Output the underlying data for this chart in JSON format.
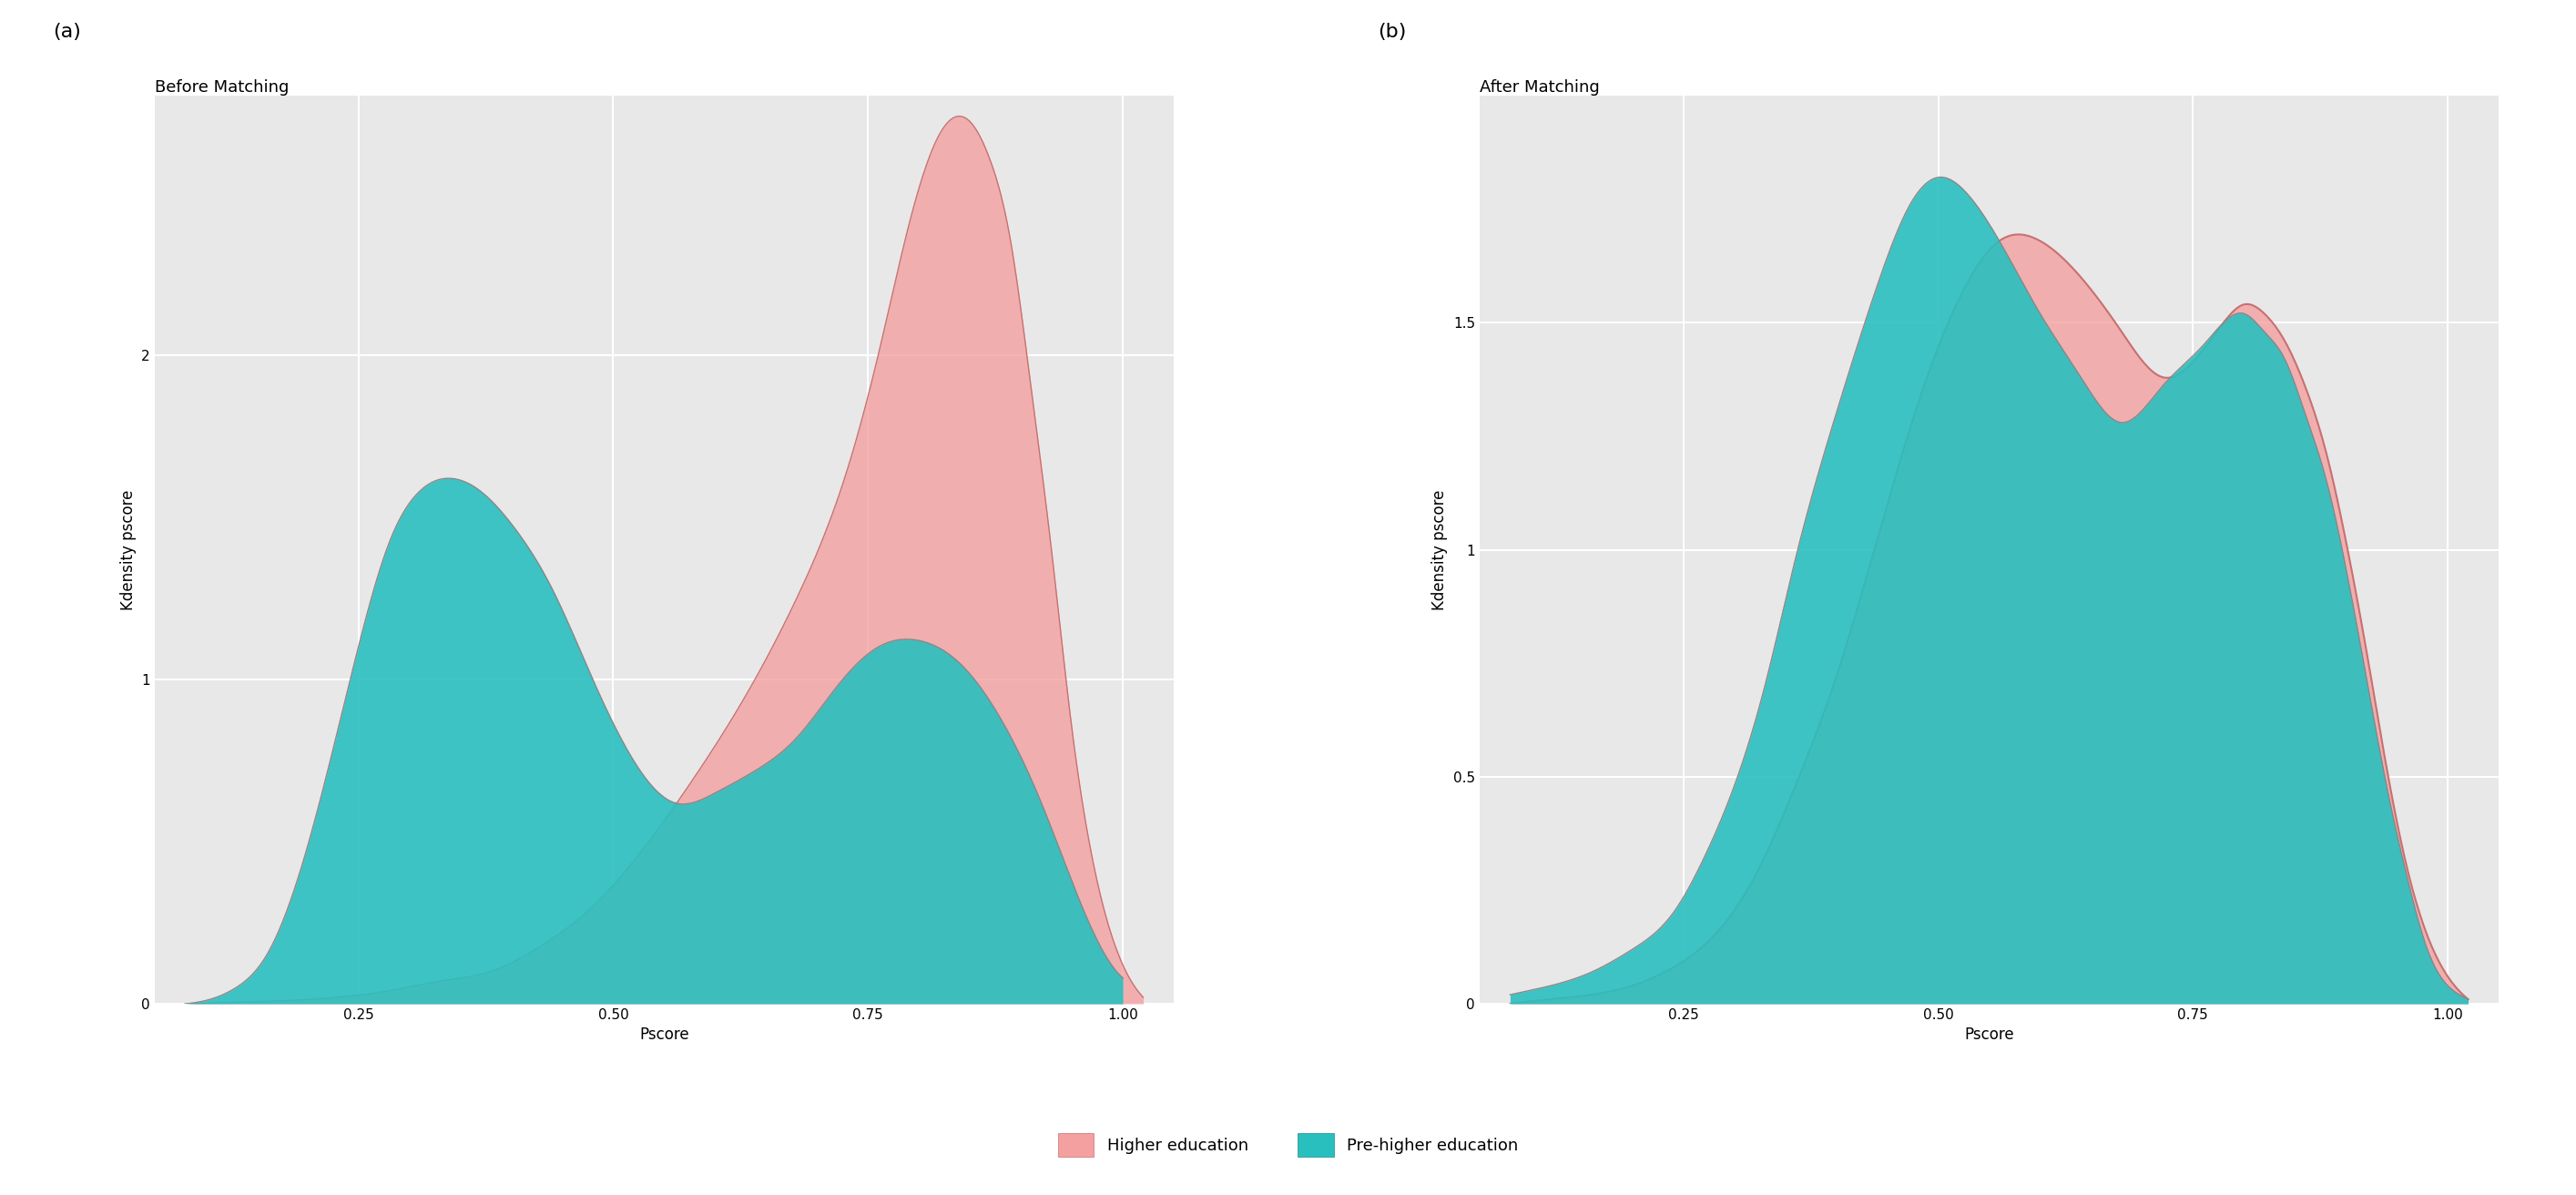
{
  "panel_a_title": "Before Matching",
  "panel_b_title": "After Matching",
  "panel_a_label": "(a)",
  "panel_b_label": "(b)",
  "xlabel": "Pscore",
  "ylabel": "Kdensity pscore",
  "color_higher": "#F4A0A0",
  "color_prehigher": "#2ABFBF",
  "color_higher_edge": "#C87070",
  "color_prehigher_edge": "#228B8B",
  "bg_color": "#E8E8E8",
  "fig_bg_color": "#FFFFFF",
  "legend_labels": [
    "Higher education",
    "Pre-higher education"
  ],
  "panel_a_ylim": [
    0,
    2.8
  ],
  "panel_b_ylim": [
    0,
    2.0
  ],
  "xlim": [
    0.05,
    1.05
  ],
  "panel_a_yticks": [
    0,
    1,
    2
  ],
  "panel_b_yticks": [
    0.0,
    0.5,
    1.0,
    1.5
  ],
  "xticks": [
    0.25,
    0.5,
    0.75,
    1.0
  ],
  "before_higher_x": [
    0.08,
    0.13,
    0.18,
    0.23,
    0.28,
    0.33,
    0.38,
    0.43,
    0.48,
    0.53,
    0.58,
    0.63,
    0.68,
    0.73,
    0.76,
    0.79,
    0.82,
    0.85,
    0.87,
    0.89,
    0.91,
    0.93,
    0.95,
    0.97,
    1.0,
    1.02
  ],
  "before_higher_y": [
    0.0,
    0.005,
    0.01,
    0.02,
    0.04,
    0.07,
    0.1,
    0.18,
    0.3,
    0.48,
    0.7,
    0.95,
    1.25,
    1.65,
    2.0,
    2.4,
    2.68,
    2.72,
    2.6,
    2.35,
    1.9,
    1.4,
    0.85,
    0.45,
    0.12,
    0.02
  ],
  "before_prehigher_x": [
    0.08,
    0.1,
    0.13,
    0.16,
    0.19,
    0.22,
    0.25,
    0.28,
    0.31,
    0.34,
    0.37,
    0.4,
    0.44,
    0.48,
    0.52,
    0.56,
    0.6,
    0.64,
    0.68,
    0.72,
    0.76,
    0.8,
    0.84,
    0.88,
    0.92,
    0.96,
    1.0
  ],
  "before_prehigher_y": [
    0.0,
    0.01,
    0.05,
    0.15,
    0.38,
    0.72,
    1.1,
    1.42,
    1.58,
    1.62,
    1.58,
    1.48,
    1.28,
    1.0,
    0.75,
    0.62,
    0.65,
    0.72,
    0.82,
    0.98,
    1.1,
    1.12,
    1.05,
    0.88,
    0.62,
    0.3,
    0.08
  ],
  "after_higher_x": [
    0.08,
    0.12,
    0.16,
    0.2,
    0.24,
    0.28,
    0.32,
    0.36,
    0.4,
    0.44,
    0.48,
    0.52,
    0.56,
    0.6,
    0.64,
    0.68,
    0.72,
    0.76,
    0.78,
    0.8,
    0.82,
    0.84,
    0.86,
    0.88,
    0.9,
    0.92,
    0.94,
    0.96,
    0.98,
    1.0,
    1.02
  ],
  "after_higher_y": [
    0.0,
    0.01,
    0.02,
    0.04,
    0.08,
    0.15,
    0.28,
    0.48,
    0.72,
    1.02,
    1.32,
    1.55,
    1.68,
    1.68,
    1.6,
    1.48,
    1.38,
    1.44,
    1.5,
    1.54,
    1.52,
    1.46,
    1.36,
    1.22,
    1.02,
    0.78,
    0.52,
    0.3,
    0.15,
    0.06,
    0.01
  ],
  "after_prehigher_x": [
    0.08,
    0.12,
    0.16,
    0.2,
    0.24,
    0.27,
    0.3,
    0.33,
    0.36,
    0.4,
    0.44,
    0.47,
    0.5,
    0.53,
    0.56,
    0.6,
    0.64,
    0.68,
    0.72,
    0.76,
    0.78,
    0.8,
    0.82,
    0.84,
    0.86,
    0.88,
    0.9,
    0.92,
    0.94,
    0.96,
    0.98,
    1.0,
    1.02
  ],
  "after_prehigher_y": [
    0.02,
    0.04,
    0.07,
    0.12,
    0.2,
    0.32,
    0.48,
    0.7,
    0.98,
    1.3,
    1.58,
    1.75,
    1.82,
    1.78,
    1.68,
    1.52,
    1.38,
    1.28,
    1.36,
    1.45,
    1.5,
    1.52,
    1.48,
    1.42,
    1.3,
    1.16,
    0.96,
    0.72,
    0.48,
    0.28,
    0.12,
    0.04,
    0.01
  ]
}
